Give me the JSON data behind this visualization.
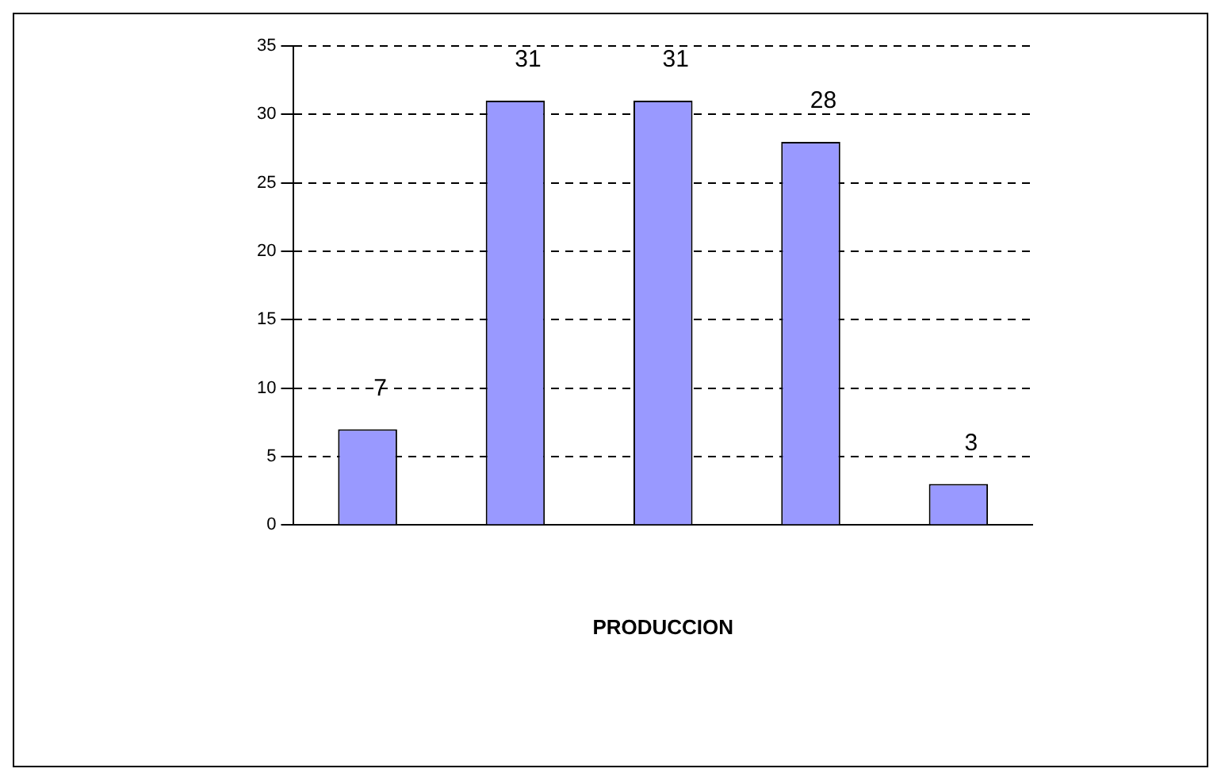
{
  "chart_data": {
    "type": "bar",
    "xlabel": "PRODUCCION",
    "categories": [
      null,
      null,
      null,
      null,
      null
    ],
    "values": [
      7,
      31,
      31,
      28,
      3
    ],
    "color": "#9999ff",
    "ylim": [
      0,
      35
    ],
    "yticks": [
      0,
      5,
      10,
      15,
      20,
      25,
      30,
      35
    ],
    "grid": "y",
    "data_labels": true,
    "legend": false
  }
}
